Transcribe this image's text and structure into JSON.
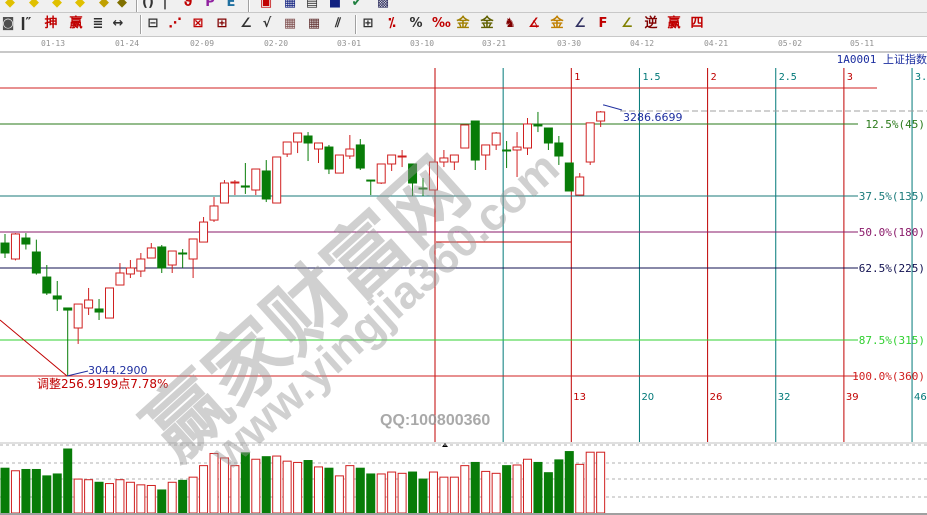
{
  "toolbar_row1": {
    "icons": [
      {
        "name": "yellow-diamond-icon",
        "glyph": "◆",
        "color": "#e0c000"
      },
      {
        "name": "yellow-diamond-icon",
        "glyph": "◆",
        "color": "#e0c000"
      },
      {
        "name": "yellow-diamond-icon",
        "glyph": "◆",
        "color": "#e0c000"
      },
      {
        "name": "yellow-diamond-icon",
        "glyph": "◆",
        "color": "#e0c000"
      },
      {
        "name": "yellow-diamond-icon",
        "glyph": "◆",
        "color": "#c0a000"
      },
      {
        "name": "yellow-diamond-icon",
        "glyph": "◆",
        "color": "#807000"
      },
      {
        "name": "parentheses-icon",
        "glyph": "()",
        "color": "#333333"
      },
      {
        "name": "vertical-line-icon",
        "glyph": "|",
        "color": "#333333"
      },
      {
        "name": "red-pen-icon",
        "glyph": "ϑ",
        "color": "#c00000"
      },
      {
        "name": "purple-p-icon",
        "glyph": "P",
        "color": "#9020a0"
      },
      {
        "name": "e-icon",
        "glyph": "E",
        "color": "#2070a0"
      },
      {
        "name": "chart-window-icon",
        "glyph": "▣",
        "color": "#c00000"
      },
      {
        "name": "grid-window-icon",
        "glyph": "▦",
        "color": "#102080"
      },
      {
        "name": "save-page-icon",
        "glyph": "▤",
        "color": "#303030"
      },
      {
        "name": "floppy-icon",
        "glyph": "■",
        "color": "#102080"
      },
      {
        "name": "check-icon",
        "glyph": "✔",
        "color": "#208040"
      },
      {
        "name": "print-icon",
        "glyph": "▩",
        "color": "#303060"
      }
    ]
  },
  "toolbar_row2": {
    "icons": [
      {
        "name": "target-icon",
        "glyph": "◙",
        "color": "#505050"
      },
      {
        "name": "line-tool-icon",
        "glyph": "ǀ″",
        "color": "#303030"
      },
      {
        "name": "shen-icon",
        "glyph": "抻",
        "color": "#c00000"
      },
      {
        "name": "ying-icon",
        "glyph": "赢",
        "color": "#c00000"
      },
      {
        "name": "multi-line-icon",
        "glyph": "≣",
        "color": "#303030"
      },
      {
        "name": "range-icon",
        "glyph": "↔",
        "color": "#303030"
      },
      {
        "name": "box-tool-icon",
        "glyph": "⊟",
        "color": "#303030"
      },
      {
        "name": "fan-tool-icon",
        "glyph": "⋰",
        "color": "#c00000"
      },
      {
        "name": "gann-box-icon",
        "glyph": "⊠",
        "color": "#c00000"
      },
      {
        "name": "gann-square-icon",
        "glyph": "⊞",
        "color": "#800000"
      },
      {
        "name": "angle-tool-icon",
        "glyph": "∠",
        "color": "#303030"
      },
      {
        "name": "wave-tool-icon",
        "glyph": "√",
        "color": "#303030"
      },
      {
        "name": "grid-tool-icon",
        "glyph": "▦",
        "color": "#805050"
      },
      {
        "name": "grid-tool-2-icon",
        "glyph": "▦",
        "color": "#603030"
      },
      {
        "name": "parallel-tool-icon",
        "glyph": "⫽",
        "color": "#303030"
      },
      {
        "name": "table-tool-icon",
        "glyph": "⊞",
        "color": "#303030"
      },
      {
        "name": "percent-red-icon",
        "glyph": "⁒",
        "color": "#c00000"
      },
      {
        "name": "percent-icon",
        "glyph": "%",
        "color": "#303030"
      },
      {
        "name": "percent-lines-icon",
        "glyph": "‰",
        "color": "#c00000"
      },
      {
        "name": "gold-circle-icon",
        "glyph": "金",
        "color": "#a08000"
      },
      {
        "name": "gold-lines-icon",
        "glyph": "金",
        "color": "#606000"
      },
      {
        "name": "figure-tool-icon",
        "glyph": "♞",
        "color": "#800000"
      },
      {
        "name": "red-angle-icon",
        "glyph": "∡",
        "color": "#c00000"
      },
      {
        "name": "gold-angle-icon",
        "glyph": "金",
        "color": "#c08000"
      },
      {
        "name": "j-angle-icon",
        "glyph": "∠",
        "color": "#303060"
      },
      {
        "name": "f-angle-icon",
        "glyph": "F",
        "color": "#c00000"
      },
      {
        "name": "gold-fan-icon",
        "glyph": "∠",
        "color": "#808000"
      },
      {
        "name": "ni-fan-icon",
        "glyph": "逆",
        "color": "#800000"
      },
      {
        "name": "ying-fan-icon",
        "glyph": "赢",
        "color": "#c00000"
      },
      {
        "name": "si-fan-icon",
        "glyph": "四",
        "color": "#c00000"
      }
    ]
  },
  "date_axis": [
    "01-13",
    "01-24",
    "02-09",
    "02-20",
    "03-01",
    "03-10",
    "03-21",
    "03-30",
    "04-12",
    "04-21",
    "05-02",
    "05-11"
  ],
  "symbol_label": "1A0001  上证指数",
  "watermark": {
    "cn": "赢家财富网",
    "url": "www.yingjia360.com",
    "qq": "QQ:100800360"
  },
  "annotations": {
    "low_value": "3044.2900",
    "low_note": "调整256.9199点7.78%",
    "high_value": "3286.6699"
  },
  "colors": {
    "up": "#d02020",
    "down": "#087c08",
    "cycle_integer": "#c00000",
    "cycle_half": "#007878"
  },
  "fib_levels": [
    {
      "pct": 0.0,
      "label": "",
      "color": "#d02020"
    },
    {
      "pct": 0.125,
      "label": "12.5%(45)",
      "color": "#2a7a1a"
    },
    {
      "pct": 0.375,
      "label": "37.5%(135)",
      "color": "#1a7a7a"
    },
    {
      "pct": 0.5,
      "label": "50.0%(180)",
      "color": "#8a1a6a"
    },
    {
      "pct": 0.625,
      "label": "62.5%(225)",
      "color": "#101050"
    },
    {
      "pct": 0.875,
      "label": "87.5%(315)",
      "color": "#30d030"
    },
    {
      "pct": 1.0,
      "label": "100.0%(360)",
      "color": "#d02020"
    }
  ],
  "cycles": [
    {
      "t": 0,
      "top": "",
      "bottom": ""
    },
    {
      "t": 0.5,
      "top": "",
      "bottom": ""
    },
    {
      "t": 1,
      "top": "1",
      "bottom": "13"
    },
    {
      "t": 1.5,
      "top": "1.5",
      "bottom": "20"
    },
    {
      "t": 2,
      "top": "2",
      "bottom": "26"
    },
    {
      "t": 2.5,
      "top": "2.5",
      "bottom": "32"
    },
    {
      "t": 3,
      "top": "3",
      "bottom": "39"
    },
    {
      "t": 3.5,
      "top": "3.",
      "bottom": "46"
    }
  ],
  "chart_data": {
    "type": "candlestick",
    "low_price": 3044.29,
    "high_price": 3286.67,
    "ohlc": [
      [
        3165.9,
        3174.2,
        3152.2,
        3156.8
      ],
      [
        3151.3,
        3175.0,
        3150.0,
        3174.2
      ],
      [
        3170.5,
        3175.0,
        3160.0,
        3165.0
      ],
      [
        3157.7,
        3169.0,
        3137.0,
        3138.5
      ],
      [
        3134.8,
        3145.8,
        3118.4,
        3120.2
      ],
      [
        3117.5,
        3131.2,
        3103.7,
        3114.7
      ],
      [
        3106.5,
        3106.5,
        3044.29,
        3104.6
      ],
      [
        3088.2,
        3110.1,
        3073.6,
        3110.1
      ],
      [
        3106.5,
        3124.8,
        3100.1,
        3113.8
      ],
      [
        3105.6,
        3114.7,
        3095.5,
        3102.8
      ],
      [
        3097.3,
        3125.0,
        3097.0,
        3124.8
      ],
      [
        3127.5,
        3147.6,
        3127.5,
        3138.5
      ],
      [
        3137.6,
        3150.4,
        3133.9,
        3143.1
      ],
      [
        3140.3,
        3156.8,
        3134.8,
        3151.3
      ],
      [
        3152.2,
        3165.9,
        3152.2,
        3161.4
      ],
      [
        3162.3,
        3164.1,
        3138.5,
        3143.1
      ],
      [
        3145.8,
        3158.6,
        3138.5,
        3158.6
      ],
      [
        3156.8,
        3160.4,
        3143.1,
        3155.9
      ],
      [
        3151.3,
        3169.6,
        3133.9,
        3169.6
      ],
      [
        3166.8,
        3189.7,
        3166.8,
        3185.1
      ],
      [
        3186.9,
        3208.0,
        3185.1,
        3199.8
      ],
      [
        3202.5,
        3223.5,
        3202.5,
        3220.8
      ],
      [
        3220.8,
        3223.5,
        3209.8,
        3221.7
      ],
      [
        3218.1,
        3239.1,
        3210.8,
        3217.1
      ],
      [
        3214.4,
        3233.6,
        3209.8,
        3233.6
      ],
      [
        3231.8,
        3241.8,
        3203.4,
        3206.2
      ],
      [
        3202.5,
        3244.6,
        3202.5,
        3244.6
      ],
      [
        3247.3,
        3258.3,
        3244.6,
        3258.3
      ],
      [
        3258.3,
        3266.5,
        3248.2,
        3266.5
      ],
      [
        3263.8,
        3267.4,
        3240.9,
        3257.4
      ],
      [
        3251.9,
        3257.4,
        3239.1,
        3257.4
      ],
      [
        3253.7,
        3255.6,
        3229.0,
        3233.6
      ],
      [
        3229.9,
        3246.4,
        3229.9,
        3246.4
      ],
      [
        3245.5,
        3264.7,
        3242.8,
        3251.9
      ],
      [
        3255.6,
        3261.0,
        3232.7,
        3234.5
      ],
      [
        3223.5,
        3223.5,
        3209.8,
        3222.6
      ],
      [
        3220.8,
        3238.2,
        3219.9,
        3238.2
      ],
      [
        3238.2,
        3246.4,
        3231.8,
        3246.4
      ],
      [
        3244.6,
        3251.0,
        3235.4,
        3245.5
      ],
      [
        3238.2,
        3238.2,
        3208.9,
        3220.8
      ],
      [
        3216.2,
        3225.4,
        3208.9,
        3215.3
      ],
      [
        3214.4,
        3240.0,
        3214.4,
        3240.0
      ],
      [
        3240.0,
        3251.0,
        3235.4,
        3243.7
      ],
      [
        3240.0,
        3246.4,
        3232.7,
        3246.4
      ],
      [
        3252.8,
        3273.9,
        3252.8,
        3273.9
      ],
      [
        3277.5,
        3277.5,
        3232.7,
        3241.8
      ],
      [
        3246.4,
        3255.6,
        3232.7,
        3255.6
      ],
      [
        3255.6,
        3267.4,
        3251.0,
        3266.5
      ],
      [
        3251.0,
        3259.2,
        3234.5,
        3250.1
      ],
      [
        3251.0,
        3267.4,
        3226.3,
        3253.7
      ],
      [
        3252.8,
        3280.3,
        3246.4,
        3274.8
      ],
      [
        3273.9,
        3285.8,
        3267.4,
        3273.0
      ],
      [
        3271.1,
        3271.1,
        3251.0,
        3257.4
      ],
      [
        3257.4,
        3263.8,
        3237.3,
        3245.5
      ],
      [
        3239.1,
        3239.1,
        3213.5,
        3213.5
      ],
      [
        3209.8,
        3229.9,
        3208.9,
        3226.3
      ],
      [
        3240.0,
        3275.8,
        3237.3,
        3275.8
      ],
      [
        3277.5,
        3286.67,
        3272.0,
        3285.8
      ]
    ],
    "volume_relative": [
      70,
      66,
      68,
      68,
      58,
      61,
      100,
      53,
      52,
      48,
      46,
      52,
      48,
      44,
      43,
      36,
      48,
      51,
      56,
      74,
      93,
      86,
      74,
      94,
      84,
      88,
      89,
      81,
      79,
      82,
      72,
      70,
      58,
      74,
      70,
      61,
      61,
      64,
      62,
      64,
      53,
      64,
      56,
      56,
      74,
      79,
      65,
      62,
      74,
      75,
      84,
      79,
      63,
      83,
      96,
      76,
      95,
      95
    ]
  }
}
